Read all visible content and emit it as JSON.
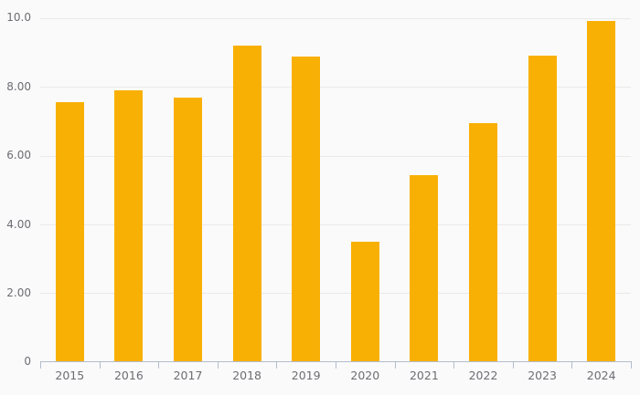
{
  "chart_data": {
    "type": "bar",
    "title": "",
    "xlabel": "",
    "ylabel": "",
    "categories": [
      "2015",
      "2016",
      "2017",
      "2018",
      "2019",
      "2020",
      "2021",
      "2022",
      "2023",
      "2024"
    ],
    "values": [
      7.55,
      7.9,
      7.7,
      9.2,
      8.88,
      3.5,
      5.43,
      6.95,
      8.92,
      9.92
    ],
    "ylim": [
      0,
      10
    ],
    "yticks": [
      0,
      2,
      4,
      6,
      8,
      10
    ],
    "ytick_labels": [
      "0",
      "2.00",
      "4.00",
      "6.00",
      "8.00",
      "10.0"
    ],
    "grid": true,
    "legend": false,
    "colors": {
      "bar": "#f9b005",
      "background": "#fafafa",
      "gridline": "#e9e9e9",
      "axis_line": "#b3bdce",
      "label_text": "#6d6d73"
    }
  }
}
